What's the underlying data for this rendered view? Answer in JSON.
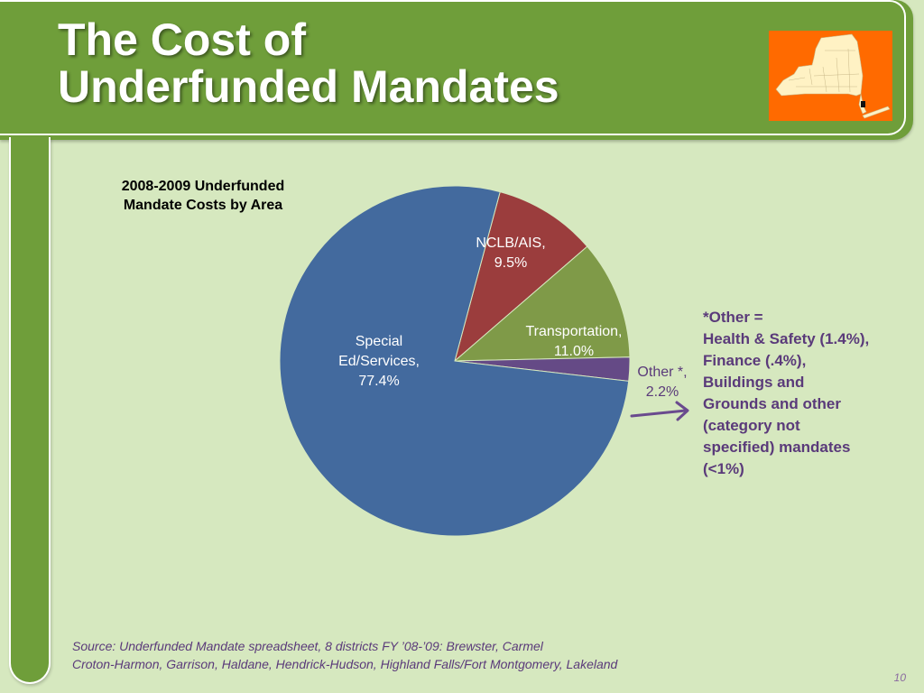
{
  "slide": {
    "title_lines": [
      "The Cost of",
      "Underfunded Mandates"
    ],
    "source_lines": [
      "Source:  Underfunded Mandate spreadsheet, 8 districts FY ’08-’09:  Brewster, Carmel",
      "Croton-Harmon, Garrison, Haldane, Hendrick-Hudson, Highland Falls/Fort Montgomery, Lakeland"
    ],
    "page_number": "10",
    "note_lines": [
      "*Other =",
      "Health & Safety (1.4%),",
      "Finance (.4%),",
      "Buildings and",
      "Grounds and other",
      "(category not",
      "specified) mandates",
      "(<1%)"
    ]
  },
  "chart_data": {
    "type": "pie",
    "title_lines": [
      "2008-2009 Underfunded",
      "Mandate Costs by Area"
    ],
    "slices": [
      {
        "category": "NCLB/AIS",
        "value": 9.5,
        "label_lines": [
          "NCLB/AIS,",
          "9.5%"
        ],
        "color": "#9b3d3d"
      },
      {
        "category": "Transportation",
        "value": 11.0,
        "label_lines": [
          "Transportation,",
          "11.0%"
        ],
        "color": "#7f9a48"
      },
      {
        "category": "Other *",
        "value": 2.2,
        "label_lines": [
          "Other *,",
          "2.2%"
        ],
        "color": "#654a86"
      },
      {
        "category": "Special Ed/Services",
        "value": 77.4,
        "label_lines": [
          "Special",
          "Ed/Services,",
          "77.4%"
        ],
        "color": "#436a9e"
      }
    ],
    "start_angle_deg": 15,
    "direction": "clockwise"
  },
  "colors": {
    "header_green": "#6f9e3a",
    "background": "#d6e8bf",
    "map_background": "#ff6a00",
    "map_fill": "#fff2c4",
    "accent_purple": "#5a3a7a"
  }
}
